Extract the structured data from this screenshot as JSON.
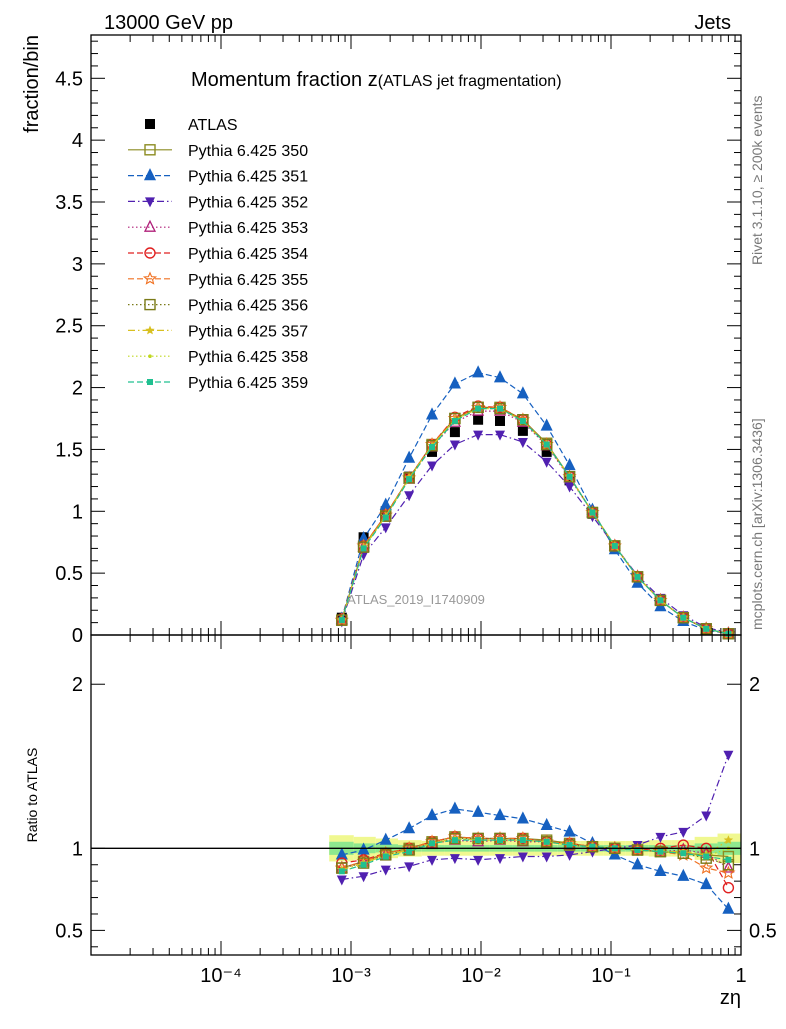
{
  "header": {
    "left": "13000 GeV pp",
    "right": "Jets"
  },
  "side_labels": {
    "rivet": "Rivet 3.1.10, ≥ 200k events",
    "mcplots": "mcplots.cern.ch [arXiv:1306.3436]"
  },
  "watermark": "ATLAS_2019_I1740909",
  "chart_data": [
    {
      "panel": "main",
      "type": "scatter",
      "title": "Momentum fraction z",
      "title_suffix": "(ATLAS jet fragmentation)",
      "ylabel": "fraction/bin",
      "xlabel": "zη",
      "xscale": "log",
      "xlim": [
        1e-05,
        1
      ],
      "ylim": [
        0,
        4.85
      ],
      "yticks": [
        0,
        0.5,
        1,
        1.5,
        2,
        2.5,
        3,
        3.5,
        4,
        4.5
      ],
      "ytick_labels": [
        "0",
        "0.5",
        "1",
        "1.5",
        "2",
        "2.5",
        "3",
        "3.5",
        "4",
        "4.5"
      ],
      "legend_position": "top-left",
      "x": [
        0.00085,
        0.00125,
        0.00185,
        0.0028,
        0.0042,
        0.0063,
        0.0095,
        0.014,
        0.021,
        0.032,
        0.048,
        0.072,
        0.107,
        0.16,
        0.24,
        0.36,
        0.54,
        0.8
      ],
      "series": [
        {
          "name": "ATLAS",
          "color": "#000000",
          "marker": "square-filled",
          "dash": "none",
          "values": [
            0.14,
            0.79,
            1.0,
            1.28,
            1.48,
            1.64,
            1.74,
            1.73,
            1.65,
            1.48,
            1.25,
            0.98,
            0.72,
            0.47,
            0.28,
            0.14,
            0.05,
            0.01
          ]
        },
        {
          "name": "Pythia 6.425 350",
          "color": "#8c8c22",
          "marker": "square-open",
          "dash": "solid",
          "values": [
            0.12,
            0.72,
            0.97,
            1.27,
            1.54,
            1.75,
            1.84,
            1.84,
            1.74,
            1.55,
            1.28,
            0.99,
            0.72,
            0.47,
            0.28,
            0.14,
            0.05,
            0.01
          ]
        },
        {
          "name": "Pythia 6.425 351",
          "color": "#1660c0",
          "marker": "triangle-up-filled",
          "dash": "dashed",
          "values": [
            0.13,
            0.78,
            1.05,
            1.43,
            1.78,
            2.03,
            2.12,
            2.08,
            1.95,
            1.69,
            1.37,
            1.01,
            0.69,
            0.42,
            0.23,
            0.11,
            0.04,
            0.01
          ]
        },
        {
          "name": "Pythia 6.425 352",
          "color": "#5020b0",
          "marker": "triangle-down-filled",
          "dash": "dashdot",
          "values": [
            0.11,
            0.65,
            0.87,
            1.13,
            1.37,
            1.54,
            1.62,
            1.62,
            1.56,
            1.4,
            1.2,
            0.96,
            0.72,
            0.48,
            0.3,
            0.16,
            0.06,
            0.02
          ]
        },
        {
          "name": "Pythia 6.425 353",
          "color": "#b0207a",
          "marker": "triangle-up-open",
          "dash": "dotted",
          "values": [
            0.12,
            0.71,
            0.96,
            1.26,
            1.52,
            1.72,
            1.81,
            1.81,
            1.72,
            1.53,
            1.27,
            0.99,
            0.72,
            0.47,
            0.28,
            0.14,
            0.05,
            0.01
          ]
        },
        {
          "name": "Pythia 6.425 354",
          "color": "#e02020",
          "marker": "circle-open",
          "dash": "dashed",
          "values": [
            0.13,
            0.72,
            0.97,
            1.27,
            1.54,
            1.76,
            1.85,
            1.84,
            1.74,
            1.54,
            1.28,
            0.99,
            0.72,
            0.47,
            0.28,
            0.14,
            0.05,
            0.01
          ]
        },
        {
          "name": "Pythia 6.425 355",
          "color": "#f07020",
          "marker": "star-open",
          "dash": "dashed",
          "values": [
            0.12,
            0.72,
            0.97,
            1.27,
            1.54,
            1.75,
            1.84,
            1.84,
            1.74,
            1.54,
            1.28,
            0.99,
            0.72,
            0.47,
            0.28,
            0.14,
            0.05,
            0.01
          ]
        },
        {
          "name": "Pythia 6.425 356",
          "color": "#7a7a18",
          "marker": "square-open",
          "dash": "dotted",
          "values": [
            0.12,
            0.71,
            0.96,
            1.27,
            1.53,
            1.75,
            1.84,
            1.83,
            1.74,
            1.54,
            1.28,
            0.99,
            0.72,
            0.47,
            0.28,
            0.14,
            0.05,
            0.01
          ]
        },
        {
          "name": "Pythia 6.425 357",
          "color": "#d8c020",
          "marker": "star-small",
          "dash": "dashdot",
          "values": [
            0.12,
            0.71,
            0.96,
            1.27,
            1.53,
            1.74,
            1.83,
            1.83,
            1.73,
            1.54,
            1.28,
            0.99,
            0.72,
            0.47,
            0.28,
            0.14,
            0.05,
            0.01
          ]
        },
        {
          "name": "Pythia 6.425 358",
          "color": "#c0d820",
          "marker": "dot",
          "dash": "dotted",
          "values": [
            0.12,
            0.7,
            0.96,
            1.26,
            1.53,
            1.74,
            1.83,
            1.83,
            1.73,
            1.54,
            1.28,
            0.99,
            0.72,
            0.47,
            0.28,
            0.14,
            0.05,
            0.01
          ]
        },
        {
          "name": "Pythia 6.425 359",
          "color": "#20c090",
          "marker": "square-small",
          "dash": "dashed",
          "values": [
            0.12,
            0.7,
            0.95,
            1.26,
            1.52,
            1.73,
            1.83,
            1.83,
            1.73,
            1.54,
            1.28,
            0.99,
            0.72,
            0.47,
            0.28,
            0.14,
            0.05,
            0.01
          ]
        }
      ]
    },
    {
      "panel": "ratio",
      "type": "scatter",
      "ylabel": "Ratio to ATLAS",
      "xscale": "log",
      "xlim": [
        1e-05,
        1
      ],
      "ylim": [
        0.35,
        2.3
      ],
      "yticks": [
        0.5,
        1,
        2
      ],
      "ytick_labels": [
        "0.5",
        "1",
        "2"
      ],
      "xtick_labels": [
        "10⁻⁴",
        "10⁻³",
        "10⁻²",
        "10⁻¹",
        "1"
      ],
      "xticks": [
        0.0001,
        0.001,
        0.01,
        0.1,
        1
      ],
      "reference_line": 1,
      "band_colors": {
        "inner": "#8ee88e",
        "outer": "#f0f890"
      },
      "band_x": [
        0.00068,
        0.00105,
        0.00155,
        0.0023,
        0.0035,
        0.0052,
        0.0078,
        0.0117,
        0.0175,
        0.026,
        0.039,
        0.058,
        0.087,
        0.13,
        0.195,
        0.29,
        0.44,
        0.66,
        1.0
      ],
      "band_inner": [
        0.04,
        0.03,
        0.025,
        0.02,
        0.02,
        0.02,
        0.02,
        0.02,
        0.02,
        0.02,
        0.02,
        0.02,
        0.02,
        0.02,
        0.02,
        0.02,
        0.03,
        0.04
      ],
      "band_outer": [
        0.08,
        0.07,
        0.06,
        0.05,
        0.045,
        0.045,
        0.045,
        0.045,
        0.045,
        0.045,
        0.045,
        0.045,
        0.045,
        0.045,
        0.05,
        0.05,
        0.07,
        0.09
      ],
      "x": [
        0.00085,
        0.00125,
        0.00185,
        0.0028,
        0.0042,
        0.0063,
        0.0095,
        0.014,
        0.021,
        0.032,
        0.048,
        0.072,
        0.107,
        0.16,
        0.24,
        0.36,
        0.54,
        0.8
      ],
      "series": [
        {
          "name": "Pythia 6.425 350",
          "values": [
            0.88,
            0.92,
            0.97,
            1.0,
            1.04,
            1.07,
            1.06,
            1.06,
            1.06,
            1.05,
            1.03,
            1.01,
            1.0,
            0.99,
            0.98,
            0.97,
            0.96,
            0.95
          ]
        },
        {
          "name": "Pythia 6.425 351",
          "values": [
            0.96,
            0.99,
            1.05,
            1.12,
            1.2,
            1.24,
            1.22,
            1.2,
            1.18,
            1.14,
            1.1,
            1.03,
            0.96,
            0.9,
            0.86,
            0.83,
            0.78,
            0.63
          ]
        },
        {
          "name": "Pythia 6.425 352",
          "values": [
            0.81,
            0.83,
            0.87,
            0.89,
            0.93,
            0.94,
            0.93,
            0.94,
            0.95,
            0.95,
            0.96,
            0.98,
            1.0,
            1.02,
            1.07,
            1.1,
            1.2,
            1.57
          ]
        },
        {
          "name": "Pythia 6.425 353",
          "values": [
            0.88,
            0.92,
            0.96,
            0.99,
            1.03,
            1.05,
            1.04,
            1.05,
            1.04,
            1.04,
            1.02,
            1.01,
            1.0,
            0.99,
            0.98,
            0.99,
            0.97,
            0.88
          ]
        },
        {
          "name": "Pythia 6.425 354",
          "values": [
            0.91,
            0.93,
            0.97,
            1.0,
            1.04,
            1.07,
            1.06,
            1.06,
            1.06,
            1.04,
            1.03,
            1.01,
            1.0,
            0.99,
            1.0,
            1.02,
            1.0,
            0.76
          ]
        },
        {
          "name": "Pythia 6.425 355",
          "values": [
            0.88,
            0.92,
            0.97,
            1.0,
            1.04,
            1.07,
            1.06,
            1.06,
            1.06,
            1.04,
            1.03,
            1.01,
            1.0,
            0.99,
            0.98,
            0.96,
            0.88,
            0.85
          ]
        },
        {
          "name": "Pythia 6.425 356",
          "values": [
            0.88,
            0.91,
            0.96,
            0.99,
            1.03,
            1.06,
            1.06,
            1.06,
            1.05,
            1.04,
            1.02,
            1.01,
            1.0,
            0.99,
            0.98,
            0.97,
            0.94,
            0.9
          ]
        },
        {
          "name": "Pythia 6.425 357",
          "values": [
            0.87,
            0.91,
            0.96,
            0.99,
            1.03,
            1.06,
            1.05,
            1.05,
            1.05,
            1.04,
            1.02,
            1.01,
            1.0,
            0.99,
            0.98,
            0.98,
            0.96,
            1.05
          ]
        },
        {
          "name": "Pythia 6.425 358",
          "values": [
            0.86,
            0.9,
            0.96,
            0.98,
            1.03,
            1.06,
            1.05,
            1.05,
            1.05,
            1.04,
            1.02,
            1.01,
            1.0,
            0.99,
            0.98,
            0.97,
            0.95,
            1.0
          ]
        },
        {
          "name": "Pythia 6.425 359",
          "values": [
            0.86,
            0.9,
            0.95,
            0.98,
            1.03,
            1.05,
            1.05,
            1.05,
            1.05,
            1.04,
            1.02,
            1.01,
            1.0,
            0.99,
            0.98,
            0.97,
            0.95,
            0.93
          ]
        }
      ]
    }
  ]
}
